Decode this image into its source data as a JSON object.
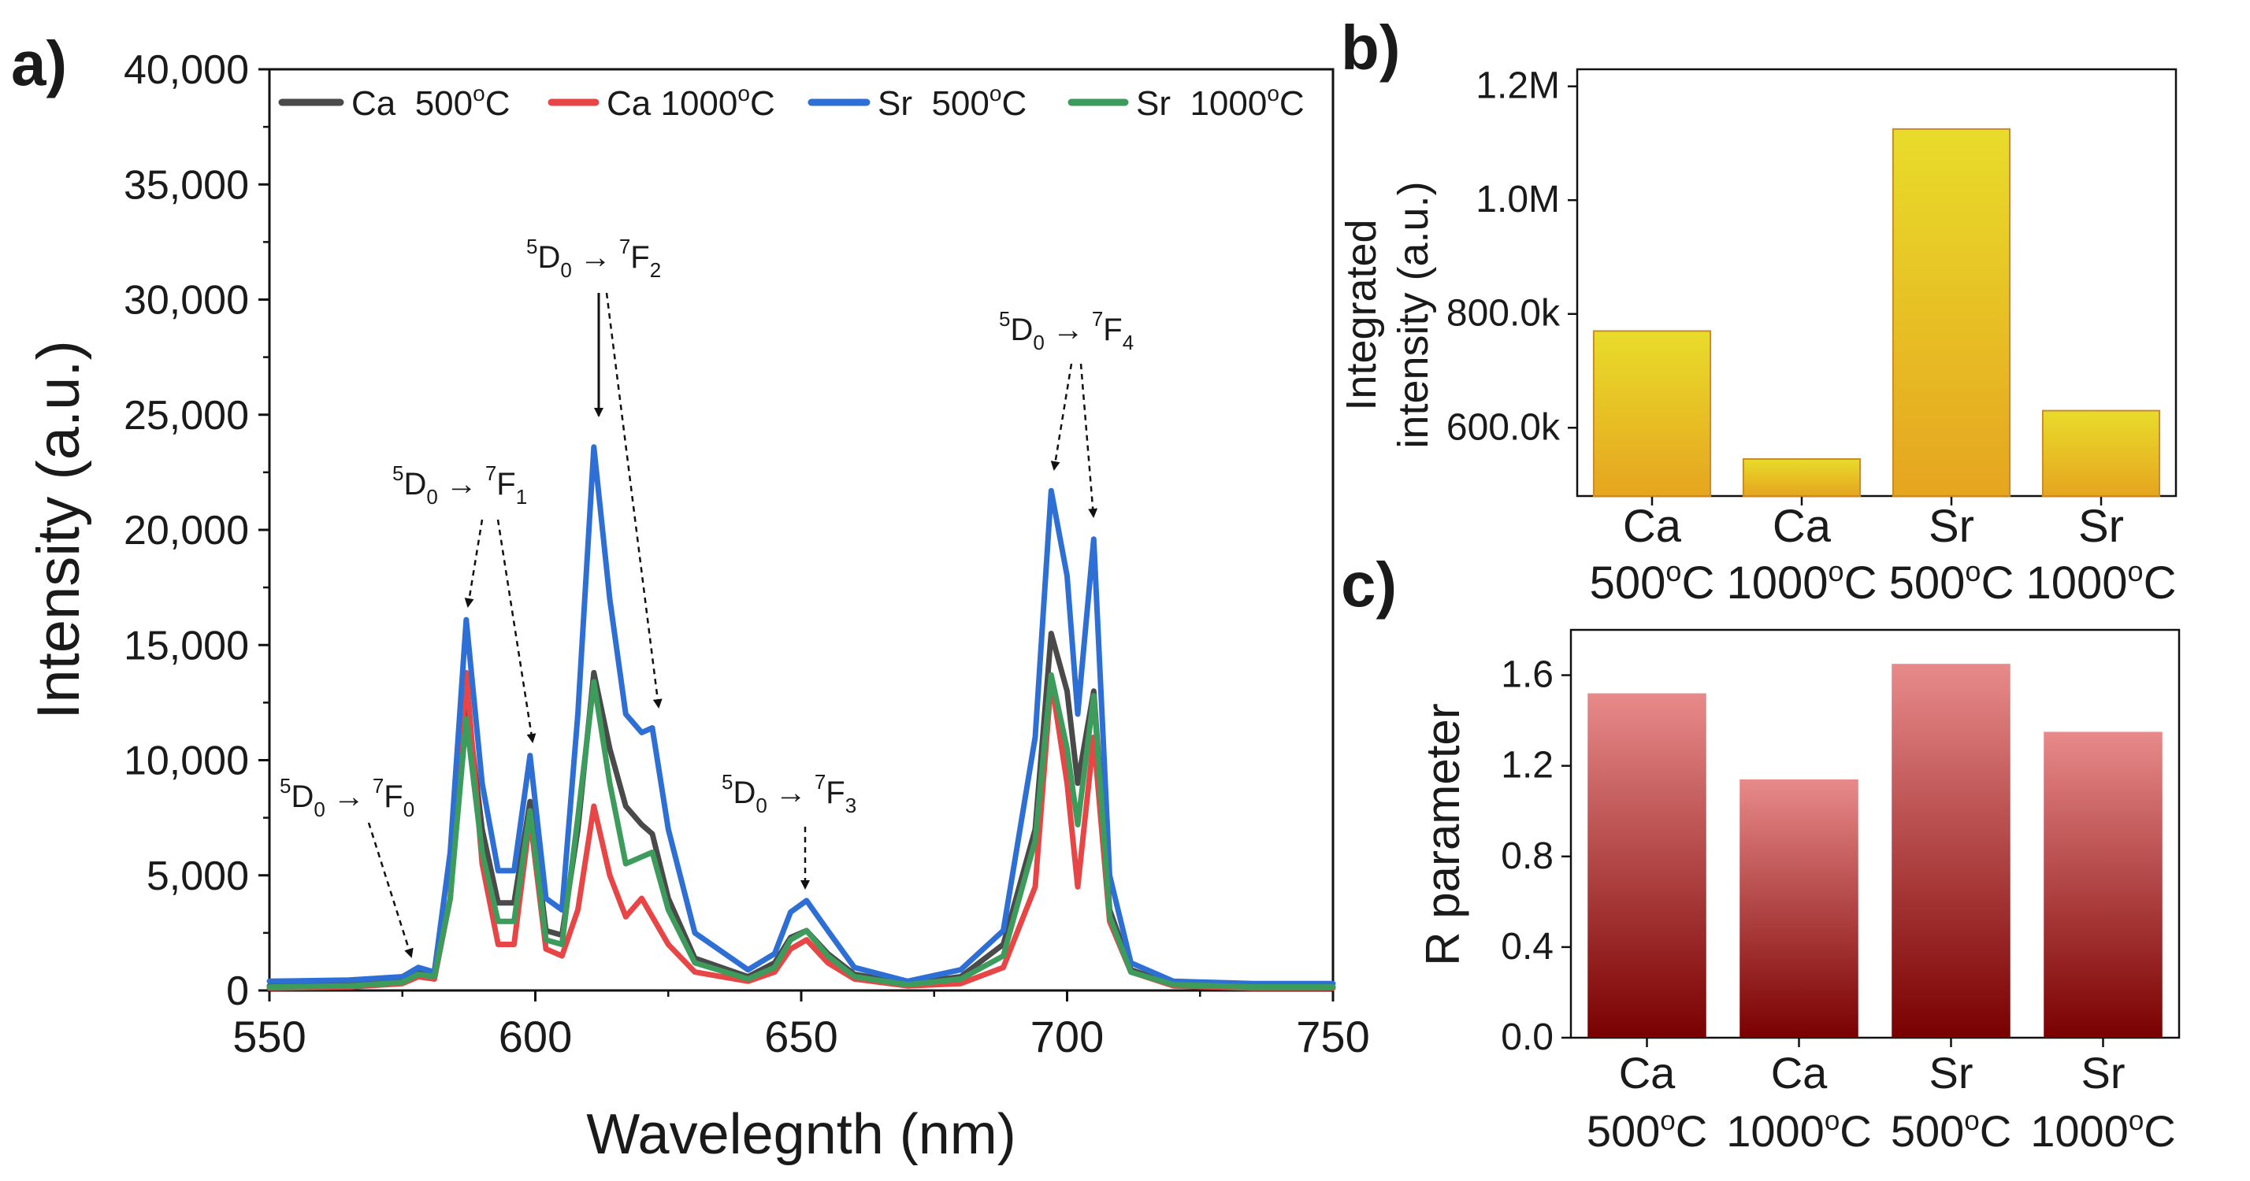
{
  "chart_data": [
    {
      "id": "a",
      "panel_label": "a)",
      "type": "line",
      "xlabel": "Wavelegnth (nm)",
      "ylabel": "Intensity (a.u.)",
      "xlim": [
        550,
        750
      ],
      "ylim": [
        0,
        40000
      ],
      "xticks": [
        550,
        600,
        650,
        700,
        750
      ],
      "xtick_labels": [
        "550",
        "600",
        "650",
        "700",
        "750"
      ],
      "yticks": [
        0,
        5000,
        10000,
        15000,
        20000,
        25000,
        30000,
        35000,
        40000
      ],
      "ytick_labels": [
        "0",
        "5,000",
        "10,000",
        "15,000",
        "20,000",
        "25,000",
        "30,000",
        "35,000",
        "40,000"
      ],
      "legend_position": "top",
      "series": [
        {
          "name": "Ca  500",
          "legend_base": "Ca  500",
          "legend_sup": "o",
          "legend_unit": "C",
          "color": "#4a4a4a",
          "x": [
            550,
            565,
            575,
            578,
            581,
            584,
            587,
            590,
            593,
            596,
            599,
            602,
            605,
            608,
            611,
            614,
            617,
            620,
            622,
            625,
            630,
            640,
            645,
            648,
            651,
            655,
            660,
            670,
            680,
            688,
            694,
            697,
            700,
            702,
            705,
            708,
            712,
            720,
            735,
            750
          ],
          "y": [
            200,
            250,
            400,
            900,
            500,
            4000,
            12800,
            7000,
            3800,
            3800,
            8200,
            2600,
            2400,
            7000,
            13800,
            10500,
            8000,
            7200,
            6800,
            4000,
            1400,
            600,
            1200,
            2300,
            2600,
            1600,
            700,
            300,
            600,
            2000,
            7000,
            15500,
            13000,
            9000,
            13000,
            3500,
            900,
            250,
            150,
            150
          ]
        },
        {
          "name": "Ca 1000",
          "legend_base": "Ca 1000",
          "legend_sup": "o",
          "legend_unit": "C",
          "color": "#e84646",
          "x": [
            550,
            565,
            575,
            578,
            581,
            584,
            587,
            590,
            593,
            596,
            599,
            602,
            605,
            608,
            611,
            614,
            617,
            620,
            622,
            625,
            630,
            640,
            645,
            648,
            651,
            655,
            660,
            670,
            680,
            688,
            694,
            697,
            700,
            702,
            705,
            708,
            712,
            720,
            735,
            750
          ],
          "y": [
            100,
            150,
            300,
            600,
            500,
            4000,
            13800,
            5500,
            2000,
            2000,
            7500,
            1800,
            1500,
            3500,
            8000,
            5000,
            3200,
            4000,
            3200,
            2000,
            800,
            400,
            800,
            1800,
            2200,
            1200,
            500,
            200,
            300,
            1000,
            4500,
            13500,
            9000,
            4500,
            11000,
            3000,
            800,
            200,
            100,
            100
          ]
        },
        {
          "name": "Sr  500",
          "legend_base": "Sr  500",
          "legend_sup": "o",
          "legend_unit": "C",
          "color": "#2e6fd6",
          "x": [
            550,
            565,
            575,
            578,
            581,
            584,
            587,
            590,
            593,
            596,
            599,
            602,
            605,
            608,
            611,
            614,
            617,
            620,
            622,
            625,
            630,
            640,
            645,
            648,
            651,
            655,
            660,
            670,
            680,
            688,
            694,
            697,
            700,
            702,
            705,
            708,
            712,
            720,
            735,
            750
          ],
          "y": [
            400,
            450,
            600,
            1000,
            800,
            6000,
            16100,
            9000,
            5200,
            5200,
            10200,
            4000,
            3500,
            12000,
            23600,
            17000,
            12000,
            11200,
            11400,
            7000,
            2500,
            900,
            1600,
            3400,
            3900,
            2600,
            1000,
            400,
            900,
            2600,
            11000,
            21700,
            18000,
            12000,
            19600,
            5000,
            1200,
            400,
            300,
            300
          ]
        },
        {
          "name": "Sr  1000",
          "legend_base": "Sr  1000",
          "legend_sup": "o",
          "legend_unit": "C",
          "color": "#3d9c5c",
          "x": [
            550,
            565,
            575,
            578,
            581,
            584,
            587,
            590,
            593,
            596,
            599,
            602,
            605,
            608,
            611,
            614,
            617,
            620,
            622,
            625,
            630,
            640,
            645,
            648,
            651,
            655,
            660,
            670,
            680,
            688,
            694,
            697,
            700,
            702,
            705,
            708,
            712,
            720,
            735,
            750
          ],
          "y": [
            150,
            200,
            350,
            700,
            600,
            4000,
            11800,
            6000,
            3000,
            3000,
            7800,
            2200,
            2000,
            7500,
            13400,
            9000,
            5500,
            5800,
            6000,
            3500,
            1200,
            500,
            1000,
            2200,
            2600,
            1500,
            600,
            250,
            500,
            1500,
            6500,
            13700,
            10500,
            7200,
            12800,
            3200,
            800,
            250,
            150,
            150
          ]
        }
      ],
      "annotations": [
        {
          "pre_sup": "5",
          "main": "D",
          "sub": "0",
          "arrow": "→",
          "pre_sup2": "7",
          "main2": "F",
          "sub2": "0"
        },
        {
          "pre_sup": "5",
          "main": "D",
          "sub": "0",
          "arrow": "→",
          "pre_sup2": "7",
          "main2": "F",
          "sub2": "1"
        },
        {
          "pre_sup": "5",
          "main": "D",
          "sub": "0",
          "arrow": "→",
          "pre_sup2": "7",
          "main2": "F",
          "sub2": "2"
        },
        {
          "pre_sup": "5",
          "main": "D",
          "sub": "0",
          "arrow": "→",
          "pre_sup2": "7",
          "main2": "F",
          "sub2": "3"
        },
        {
          "pre_sup": "5",
          "main": "D",
          "sub": "0",
          "arrow": "→",
          "pre_sup2": "7",
          "main2": "F",
          "sub2": "4"
        }
      ]
    },
    {
      "id": "b",
      "panel_label": "b)",
      "type": "bar",
      "ylabel_line1": "Integrated",
      "ylabel_line2": "intensity (a.u.)",
      "ylim": [
        480000,
        1230000
      ],
      "yticks": [
        600000,
        800000,
        1000000,
        1200000
      ],
      "ytick_labels": [
        "600.0k",
        "800.0k",
        "1.0M",
        "1.2M"
      ],
      "categories": [
        {
          "line1": "Ca",
          "base": "500",
          "sup": "o",
          "unit": "C"
        },
        {
          "line1": "Ca",
          "base": "1000",
          "sup": "o",
          "unit": "C"
        },
        {
          "line1": "Sr",
          "base": "500",
          "sup": "o",
          "unit": "C"
        },
        {
          "line1": "Sr",
          "base": "1000",
          "sup": "o",
          "unit": "C"
        }
      ],
      "values": [
        770000,
        545000,
        1125000,
        630000
      ],
      "bar_color_top": "#e8dc2a",
      "bar_color_bottom": "#e6a520",
      "bar_edge": "#c98a2a"
    },
    {
      "id": "c",
      "panel_label": "c)",
      "type": "bar",
      "ylabel": "R parameter",
      "ylim": [
        0,
        1.8
      ],
      "yticks": [
        0,
        0.4,
        0.8,
        1.2,
        1.6
      ],
      "ytick_labels": [
        "0.0",
        "0.4",
        "0.8",
        "1.2",
        "1.6"
      ],
      "categories": [
        {
          "line1": "Ca",
          "base": "500",
          "sup": "o",
          "unit": "C"
        },
        {
          "line1": "Ca",
          "base": "1000",
          "sup": "o",
          "unit": "C"
        },
        {
          "line1": "Sr",
          "base": "500",
          "sup": "o",
          "unit": "C"
        },
        {
          "line1": "Sr",
          "base": "1000",
          "sup": "o",
          "unit": "C"
        }
      ],
      "values": [
        1.52,
        1.14,
        1.65,
        1.35
      ],
      "bar_color_top": "#e88a8a",
      "bar_color_bottom": "#7a0000"
    }
  ]
}
